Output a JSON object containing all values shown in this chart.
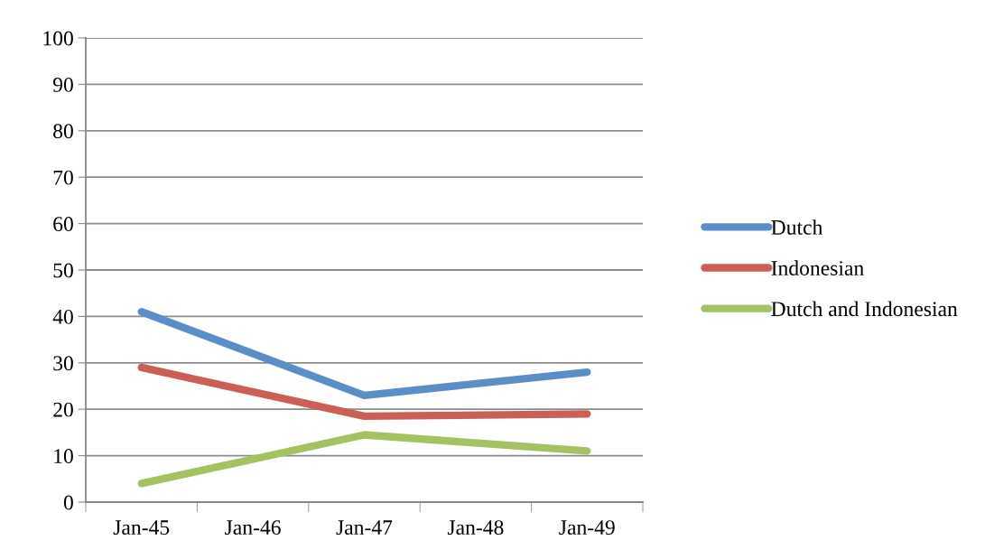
{
  "chart_data": {
    "type": "line",
    "categories": [
      "Jan-45",
      "Jan-46",
      "Jan-47",
      "Jan-48",
      "Jan-49"
    ],
    "series": [
      {
        "name": "Dutch",
        "color": "#5b8ec7",
        "values": [
          41,
          null,
          23,
          null,
          28
        ]
      },
      {
        "name": "Indonesian",
        "color": "#cb5e56",
        "values": [
          29,
          null,
          18.5,
          null,
          19
        ]
      },
      {
        "name": "Dutch and Indonesian",
        "color": "#a5c262",
        "values": [
          4,
          null,
          14.5,
          null,
          11
        ]
      }
    ],
    "ylim": [
      0,
      100
    ],
    "yticks": [
      0,
      10,
      20,
      30,
      40,
      50,
      60,
      70,
      80,
      90,
      100
    ],
    "grid": "y",
    "legend": "right",
    "marker": "none",
    "line_style": "solid"
  }
}
